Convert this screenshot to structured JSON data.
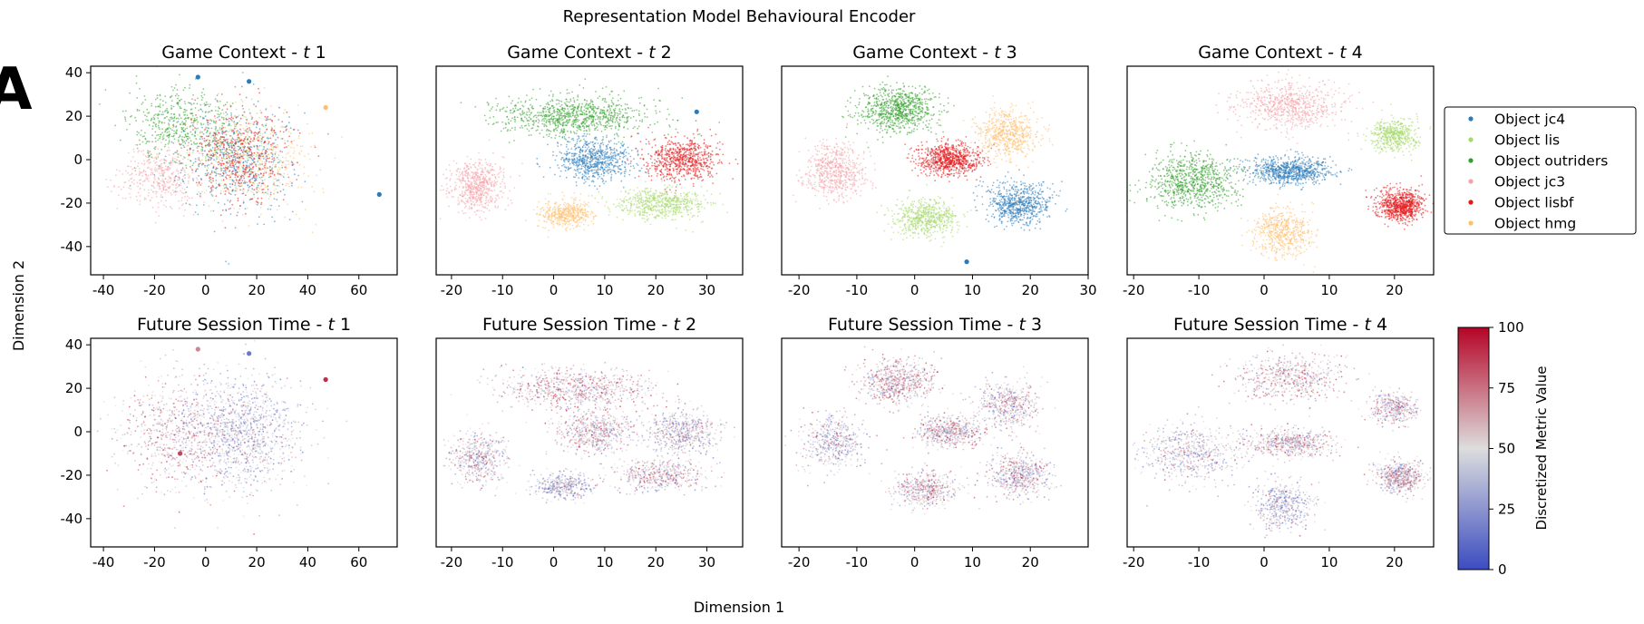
{
  "figure": {
    "suptitle": "Representation Model Behavioural Encoder",
    "panel_letter": "A",
    "xlabel": "Dimension 1",
    "ylabel": "Dimension 2"
  },
  "colors": {
    "object_jc4": "#2b7bba",
    "object_lis": "#a6d96a",
    "object_outriders": "#33a02c",
    "object_jc3": "#f4a3a8",
    "object_lisbf": "#e31a1c",
    "object_hmg": "#fdbf6f",
    "cmap_low": "#3b4cc0",
    "cmap_mid": "#dddddd",
    "cmap_high": "#b40426"
  },
  "legend": {
    "items": [
      {
        "label": "Object jc4",
        "color": "#2b7bba"
      },
      {
        "label": "Object lis",
        "color": "#a6d96a"
      },
      {
        "label": "Object outriders",
        "color": "#33a02c"
      },
      {
        "label": "Object jc3",
        "color": "#f4a3a8"
      },
      {
        "label": "Object lisbf",
        "color": "#e31a1c"
      },
      {
        "label": "Object hmg",
        "color": "#fdbf6f"
      }
    ]
  },
  "colorbar": {
    "label": "Discretized Metric Value",
    "range": [
      0,
      100
    ],
    "ticks": [
      "0",
      "25",
      "50",
      "75",
      "100"
    ],
    "cmap": "coolwarm"
  },
  "chart_data": [
    {
      "type": "scatter",
      "title": "Game Context - t 1",
      "title_prefix": "Game Context - ",
      "title_italic": "t",
      "title_suffix": " 1",
      "xlim": [
        -45,
        75
      ],
      "ylim": [
        -53,
        43
      ],
      "xticks": [
        "-40",
        "-20",
        "0",
        "20",
        "40",
        "60"
      ],
      "xtick_values": [
        -40,
        -20,
        0,
        20,
        40,
        60
      ],
      "yticks": [
        "40",
        "20",
        "0",
        "-20",
        "-40"
      ],
      "ytick_values": [
        40,
        20,
        0,
        -20,
        -40
      ],
      "show_yticks": true,
      "clusters": [
        {
          "series": "Object outriders",
          "cx": -10,
          "cy": 15,
          "rx": 22,
          "ry": 20,
          "n": 500
        },
        {
          "series": "Object jc3",
          "cx": -18,
          "cy": -8,
          "rx": 16,
          "ry": 16,
          "n": 400
        },
        {
          "series": "Object hmg",
          "cx": 20,
          "cy": 0,
          "rx": 24,
          "ry": 26,
          "n": 350
        },
        {
          "series": "Object lis",
          "cx": 12,
          "cy": 5,
          "rx": 22,
          "ry": 24,
          "n": 300
        },
        {
          "series": "Object jc4",
          "cx": 12,
          "cy": 0,
          "rx": 24,
          "ry": 26,
          "n": 500
        },
        {
          "series": "Object lisbf",
          "cx": 14,
          "cy": 2,
          "rx": 22,
          "ry": 24,
          "n": 500
        }
      ],
      "spots": [
        {
          "series": "Object jc4",
          "x": -3,
          "y": 38
        },
        {
          "series": "Object jc4",
          "x": 17,
          "y": 36
        },
        {
          "series": "Object hmg",
          "x": 47,
          "y": 24
        },
        {
          "series": "Object jc4",
          "x": 68,
          "y": -16
        }
      ]
    },
    {
      "type": "scatter",
      "title": "Game Context - t 2",
      "title_prefix": "Game Context - ",
      "title_italic": "t",
      "title_suffix": " 2",
      "xlim": [
        -23,
        37
      ],
      "ylim": [
        -53,
        43
      ],
      "xticks": [
        "-20",
        "-10",
        "0",
        "10",
        "20",
        "30"
      ],
      "xtick_values": [
        -20,
        -10,
        0,
        10,
        20,
        30
      ],
      "clusters": [
        {
          "series": "Object outriders",
          "cx": 4,
          "cy": 20,
          "rx": 16,
          "ry": 10,
          "n": 900
        },
        {
          "series": "Object jc4",
          "cx": 8,
          "cy": 0,
          "rx": 8,
          "ry": 11,
          "n": 700
        },
        {
          "series": "Object lisbf",
          "cx": 25,
          "cy": 0,
          "rx": 8,
          "ry": 11,
          "n": 700
        },
        {
          "series": "Object lis",
          "cx": 21,
          "cy": -20,
          "rx": 10,
          "ry": 8,
          "n": 600
        },
        {
          "series": "Object jc3",
          "cx": -15,
          "cy": -12,
          "rx": 6,
          "ry": 13,
          "n": 600
        },
        {
          "series": "Object hmg",
          "cx": 2,
          "cy": -25,
          "rx": 6,
          "ry": 7,
          "n": 450
        }
      ],
      "spots": [
        {
          "series": "Object jc4",
          "x": 28,
          "y": 22
        }
      ]
    },
    {
      "type": "scatter",
      "title": "Game Context - t 3",
      "title_prefix": "Game Context - ",
      "title_italic": "t",
      "title_suffix": " 3",
      "xlim": [
        -23,
        30
      ],
      "ylim": [
        -53,
        43
      ],
      "xticks": [
        "-20",
        "-10",
        "0",
        "10",
        "20",
        "30"
      ],
      "xtick_values": [
        -20,
        -10,
        0,
        10,
        20,
        30
      ],
      "clusters": [
        {
          "series": "Object outriders",
          "cx": -3,
          "cy": 23,
          "rx": 7,
          "ry": 11,
          "n": 800
        },
        {
          "series": "Object hmg",
          "cx": 16,
          "cy": 12,
          "rx": 6,
          "ry": 12,
          "n": 600
        },
        {
          "series": "Object lisbf",
          "cx": 6,
          "cy": 0,
          "rx": 6,
          "ry": 8,
          "n": 800
        },
        {
          "series": "Object jc3",
          "cx": -14,
          "cy": -5,
          "rx": 6,
          "ry": 14,
          "n": 600
        },
        {
          "series": "Object lis",
          "cx": 2,
          "cy": -27,
          "rx": 6,
          "ry": 9,
          "n": 600
        },
        {
          "series": "Object jc4",
          "cx": 18,
          "cy": -20,
          "rx": 6,
          "ry": 11,
          "n": 700
        }
      ],
      "spots": [
        {
          "series": "Object jc4",
          "x": 9,
          "y": -47
        }
      ]
    },
    {
      "type": "scatter",
      "title": "Game Context - t 4",
      "title_prefix": "Game Context - ",
      "title_italic": "t",
      "title_suffix": " 4",
      "xlim": [
        -21,
        26
      ],
      "ylim": [
        -53,
        43
      ],
      "xticks": [
        "-20",
        "-10",
        "0",
        "10",
        "20"
      ],
      "xtick_values": [
        -20,
        -10,
        0,
        10,
        20
      ],
      "clusters": [
        {
          "series": "Object jc3",
          "cx": 4,
          "cy": 25,
          "rx": 9,
          "ry": 12,
          "n": 700
        },
        {
          "series": "Object lis",
          "cx": 20,
          "cy": 11,
          "rx": 4,
          "ry": 8,
          "n": 500
        },
        {
          "series": "Object jc4",
          "cx": 4,
          "cy": -5,
          "rx": 7,
          "ry": 7,
          "n": 800
        },
        {
          "series": "Object outriders",
          "cx": -11,
          "cy": -10,
          "rx": 8,
          "ry": 14,
          "n": 800
        },
        {
          "series": "Object lisbf",
          "cx": 21,
          "cy": -21,
          "rx": 4,
          "ry": 8,
          "n": 800
        },
        {
          "series": "Object hmg",
          "cx": 3,
          "cy": -34,
          "rx": 5,
          "ry": 12,
          "n": 550
        }
      ],
      "spots": []
    },
    {
      "type": "scatter",
      "title": "Future Session Time - t 1",
      "title_prefix": "Future Session Time - ",
      "title_italic": "t",
      "title_suffix": " 1",
      "xlim": [
        -45,
        75
      ],
      "ylim": [
        -53,
        43
      ],
      "xticks": [
        "-40",
        "-20",
        "0",
        "20",
        "40",
        "60"
      ],
      "xtick_values": [
        -40,
        -20,
        0,
        20,
        40,
        60
      ],
      "yticks": [
        "40",
        "20",
        "0",
        "-20",
        "-40"
      ],
      "ytick_values": [
        40,
        20,
        0,
        -20,
        -40
      ],
      "show_yticks": true,
      "clusters": [
        {
          "metric": 60,
          "cx": -12,
          "cy": 0,
          "rx": 24,
          "ry": 30,
          "n": 700
        },
        {
          "metric": 40,
          "cx": 14,
          "cy": 0,
          "rx": 24,
          "ry": 28,
          "n": 1200
        }
      ],
      "spots": [
        {
          "metric": 70,
          "x": -3,
          "y": 38
        },
        {
          "metric": 15,
          "x": 17,
          "y": 36
        },
        {
          "metric": 90,
          "x": 47,
          "y": 24
        },
        {
          "metric": 85,
          "x": -10,
          "y": -10
        }
      ]
    },
    {
      "type": "scatter",
      "title": "Future Session Time - t 2",
      "title_prefix": "Future Session Time - ",
      "title_italic": "t",
      "title_suffix": " 2",
      "xlim": [
        -23,
        37
      ],
      "ylim": [
        -53,
        43
      ],
      "xticks": [
        "-20",
        "-10",
        "0",
        "10",
        "20",
        "30"
      ],
      "xtick_values": [
        -20,
        -10,
        0,
        10,
        20,
        30
      ],
      "clusters": [
        {
          "metric": 60,
          "cx": 4,
          "cy": 20,
          "rx": 16,
          "ry": 10,
          "n": 800
        },
        {
          "metric": 55,
          "cx": 8,
          "cy": 0,
          "rx": 8,
          "ry": 11,
          "n": 600
        },
        {
          "metric": 45,
          "cx": 25,
          "cy": 0,
          "rx": 8,
          "ry": 11,
          "n": 600
        },
        {
          "metric": 55,
          "cx": 21,
          "cy": -20,
          "rx": 10,
          "ry": 8,
          "n": 500
        },
        {
          "metric": 50,
          "cx": -15,
          "cy": -12,
          "rx": 6,
          "ry": 13,
          "n": 500
        },
        {
          "metric": 35,
          "cx": 2,
          "cy": -25,
          "rx": 6,
          "ry": 7,
          "n": 400
        }
      ],
      "spots": []
    },
    {
      "type": "scatter",
      "title": "Future Session Time - t 3",
      "title_prefix": "Future Session Time - ",
      "title_italic": "t",
      "title_suffix": " 3",
      "xlim": [
        -23,
        30
      ],
      "ylim": [
        -53,
        43
      ],
      "xticks": [
        "-20",
        "-10",
        "0",
        "10",
        "20"
      ],
      "xtick_values": [
        -20,
        -10,
        0,
        10,
        20
      ],
      "clusters": [
        {
          "metric": 60,
          "cx": -3,
          "cy": 23,
          "rx": 7,
          "ry": 11,
          "n": 700
        },
        {
          "metric": 50,
          "cx": 16,
          "cy": 12,
          "rx": 6,
          "ry": 12,
          "n": 500
        },
        {
          "metric": 55,
          "cx": 6,
          "cy": 0,
          "rx": 6,
          "ry": 8,
          "n": 600
        },
        {
          "metric": 45,
          "cx": -14,
          "cy": -5,
          "rx": 6,
          "ry": 14,
          "n": 500
        },
        {
          "metric": 55,
          "cx": 2,
          "cy": -27,
          "rx": 6,
          "ry": 9,
          "n": 500
        },
        {
          "metric": 50,
          "cx": 18,
          "cy": -20,
          "rx": 6,
          "ry": 11,
          "n": 600
        }
      ],
      "spots": []
    },
    {
      "type": "scatter",
      "title": "Future Session Time - t 4",
      "title_prefix": "Future Session Time - ",
      "title_italic": "t",
      "title_suffix": " 4",
      "xlim": [
        -21,
        26
      ],
      "ylim": [
        -53,
        43
      ],
      "xticks": [
        "-20",
        "-10",
        "0",
        "10",
        "20"
      ],
      "xtick_values": [
        -20,
        -10,
        0,
        10,
        20
      ],
      "clusters": [
        {
          "metric": 60,
          "cx": 4,
          "cy": 25,
          "rx": 9,
          "ry": 12,
          "n": 600
        },
        {
          "metric": 50,
          "cx": 20,
          "cy": 11,
          "rx": 4,
          "ry": 8,
          "n": 400
        },
        {
          "metric": 55,
          "cx": 4,
          "cy": -5,
          "rx": 7,
          "ry": 7,
          "n": 600
        },
        {
          "metric": 45,
          "cx": -11,
          "cy": -10,
          "rx": 8,
          "ry": 14,
          "n": 600
        },
        {
          "metric": 55,
          "cx": 21,
          "cy": -21,
          "rx": 4,
          "ry": 8,
          "n": 600
        },
        {
          "metric": 40,
          "cx": 3,
          "cy": -34,
          "rx": 5,
          "ry": 12,
          "n": 500
        }
      ],
      "spots": []
    }
  ]
}
